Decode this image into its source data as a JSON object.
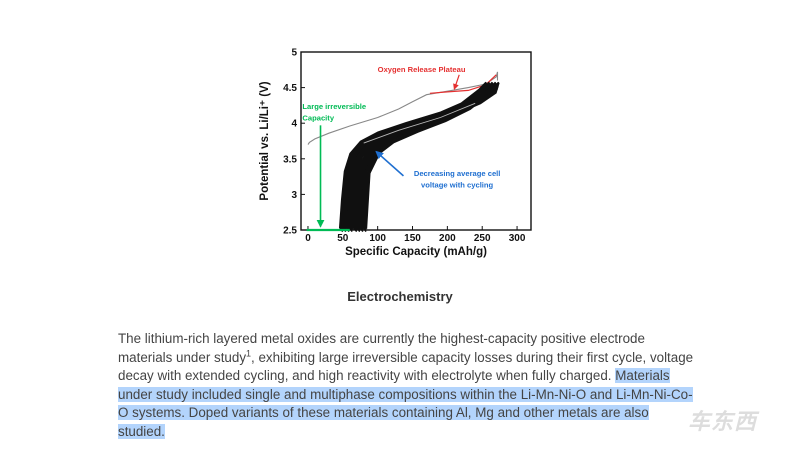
{
  "chart_data": {
    "type": "line",
    "xlabel": "Specific Capacity (mAh/g)",
    "ylabel": "Potential vs. Li/Li⁺ (V)",
    "xlim": [
      -10,
      320
    ],
    "ylim": [
      2.5,
      5.0
    ],
    "x_ticks": [
      0,
      50,
      100,
      150,
      200,
      250,
      300
    ],
    "y_ticks": [
      2.5,
      3,
      3.5,
      4,
      4.5,
      5
    ],
    "grid": false,
    "series": [
      {
        "color": "#888888",
        "points": [
          [
            0,
            3.7
          ],
          [
            2,
            3.73
          ],
          [
            10,
            3.78
          ],
          [
            30,
            3.86
          ],
          [
            60,
            3.96
          ],
          [
            100,
            4.08
          ],
          [
            130,
            4.2
          ],
          [
            150,
            4.3
          ],
          [
            170,
            4.4
          ],
          [
            200,
            4.45
          ],
          [
            230,
            4.5
          ],
          [
            255,
            4.55
          ],
          [
            270,
            4.65
          ],
          [
            272,
            4.72
          ],
          [
            272,
            4.6
          ]
        ]
      },
      {
        "color": "#e53030",
        "points": [
          [
            175,
            4.42
          ],
          [
            200,
            4.44
          ],
          [
            230,
            4.46
          ],
          [
            255,
            4.54
          ],
          [
            270,
            4.68
          ]
        ]
      },
      {
        "color": "#111111",
        "points": [
          [
            55,
            2.5
          ],
          [
            58,
            2.9
          ],
          [
            62,
            3.3
          ],
          [
            70,
            3.55
          ],
          [
            85,
            3.72
          ],
          [
            110,
            3.85
          ],
          [
            150,
            3.98
          ],
          [
            200,
            4.13
          ],
          [
            240,
            4.3
          ],
          [
            262,
            4.45
          ],
          [
            265,
            4.55
          ],
          [
            255,
            4.45
          ],
          [
            225,
            4.22
          ],
          [
            190,
            4.05
          ],
          [
            150,
            3.9
          ],
          [
            115,
            3.75
          ],
          [
            95,
            3.6
          ],
          [
            80,
            3.3
          ],
          [
            75,
            2.5
          ]
        ]
      },
      {
        "color": "#00bb55",
        "points": [
          [
            -2,
            2.5
          ],
          [
            60,
            2.5
          ]
        ]
      }
    ],
    "annotations": {
      "oxygen": {
        "text": "Oxygen Release Plateau",
        "color": "#e53030",
        "from": [
          165,
          4.7
        ],
        "to": [
          210,
          4.48
        ]
      },
      "irreversible": {
        "lines": [
          "Large irreversible",
          "Capacity"
        ],
        "color": "#00bb55",
        "from": [
          18,
          4.0
        ],
        "to": [
          18,
          2.55
        ]
      },
      "decreasing": {
        "lines": [
          "Decreasing average cell",
          "voltage with cycling"
        ],
        "color": "#1f6fd0",
        "from": [
          120,
          3.4
        ],
        "to": [
          98,
          3.6
        ]
      }
    }
  },
  "heading": "Electrochemistry",
  "paragraph": {
    "part1": "The lithium-rich layered metal oxides are currently the highest-capacity positive electrode materials under study",
    "sup": "1",
    "part2": ", exhibiting large irreversible capacity losses during their first cycle, voltage decay with extended cycling, and high reactivity with electrolyte when fully charged.",
    "highlighted": "Materials under study included single and multiphase compositions within the Li-Mn-Ni-O and Li-Mn-Ni-Co-O systems. Doped variants of these materials containing Al, Mg and other metals are also studied."
  },
  "highlight_color": "#b3d4fc",
  "watermark": "车东西"
}
